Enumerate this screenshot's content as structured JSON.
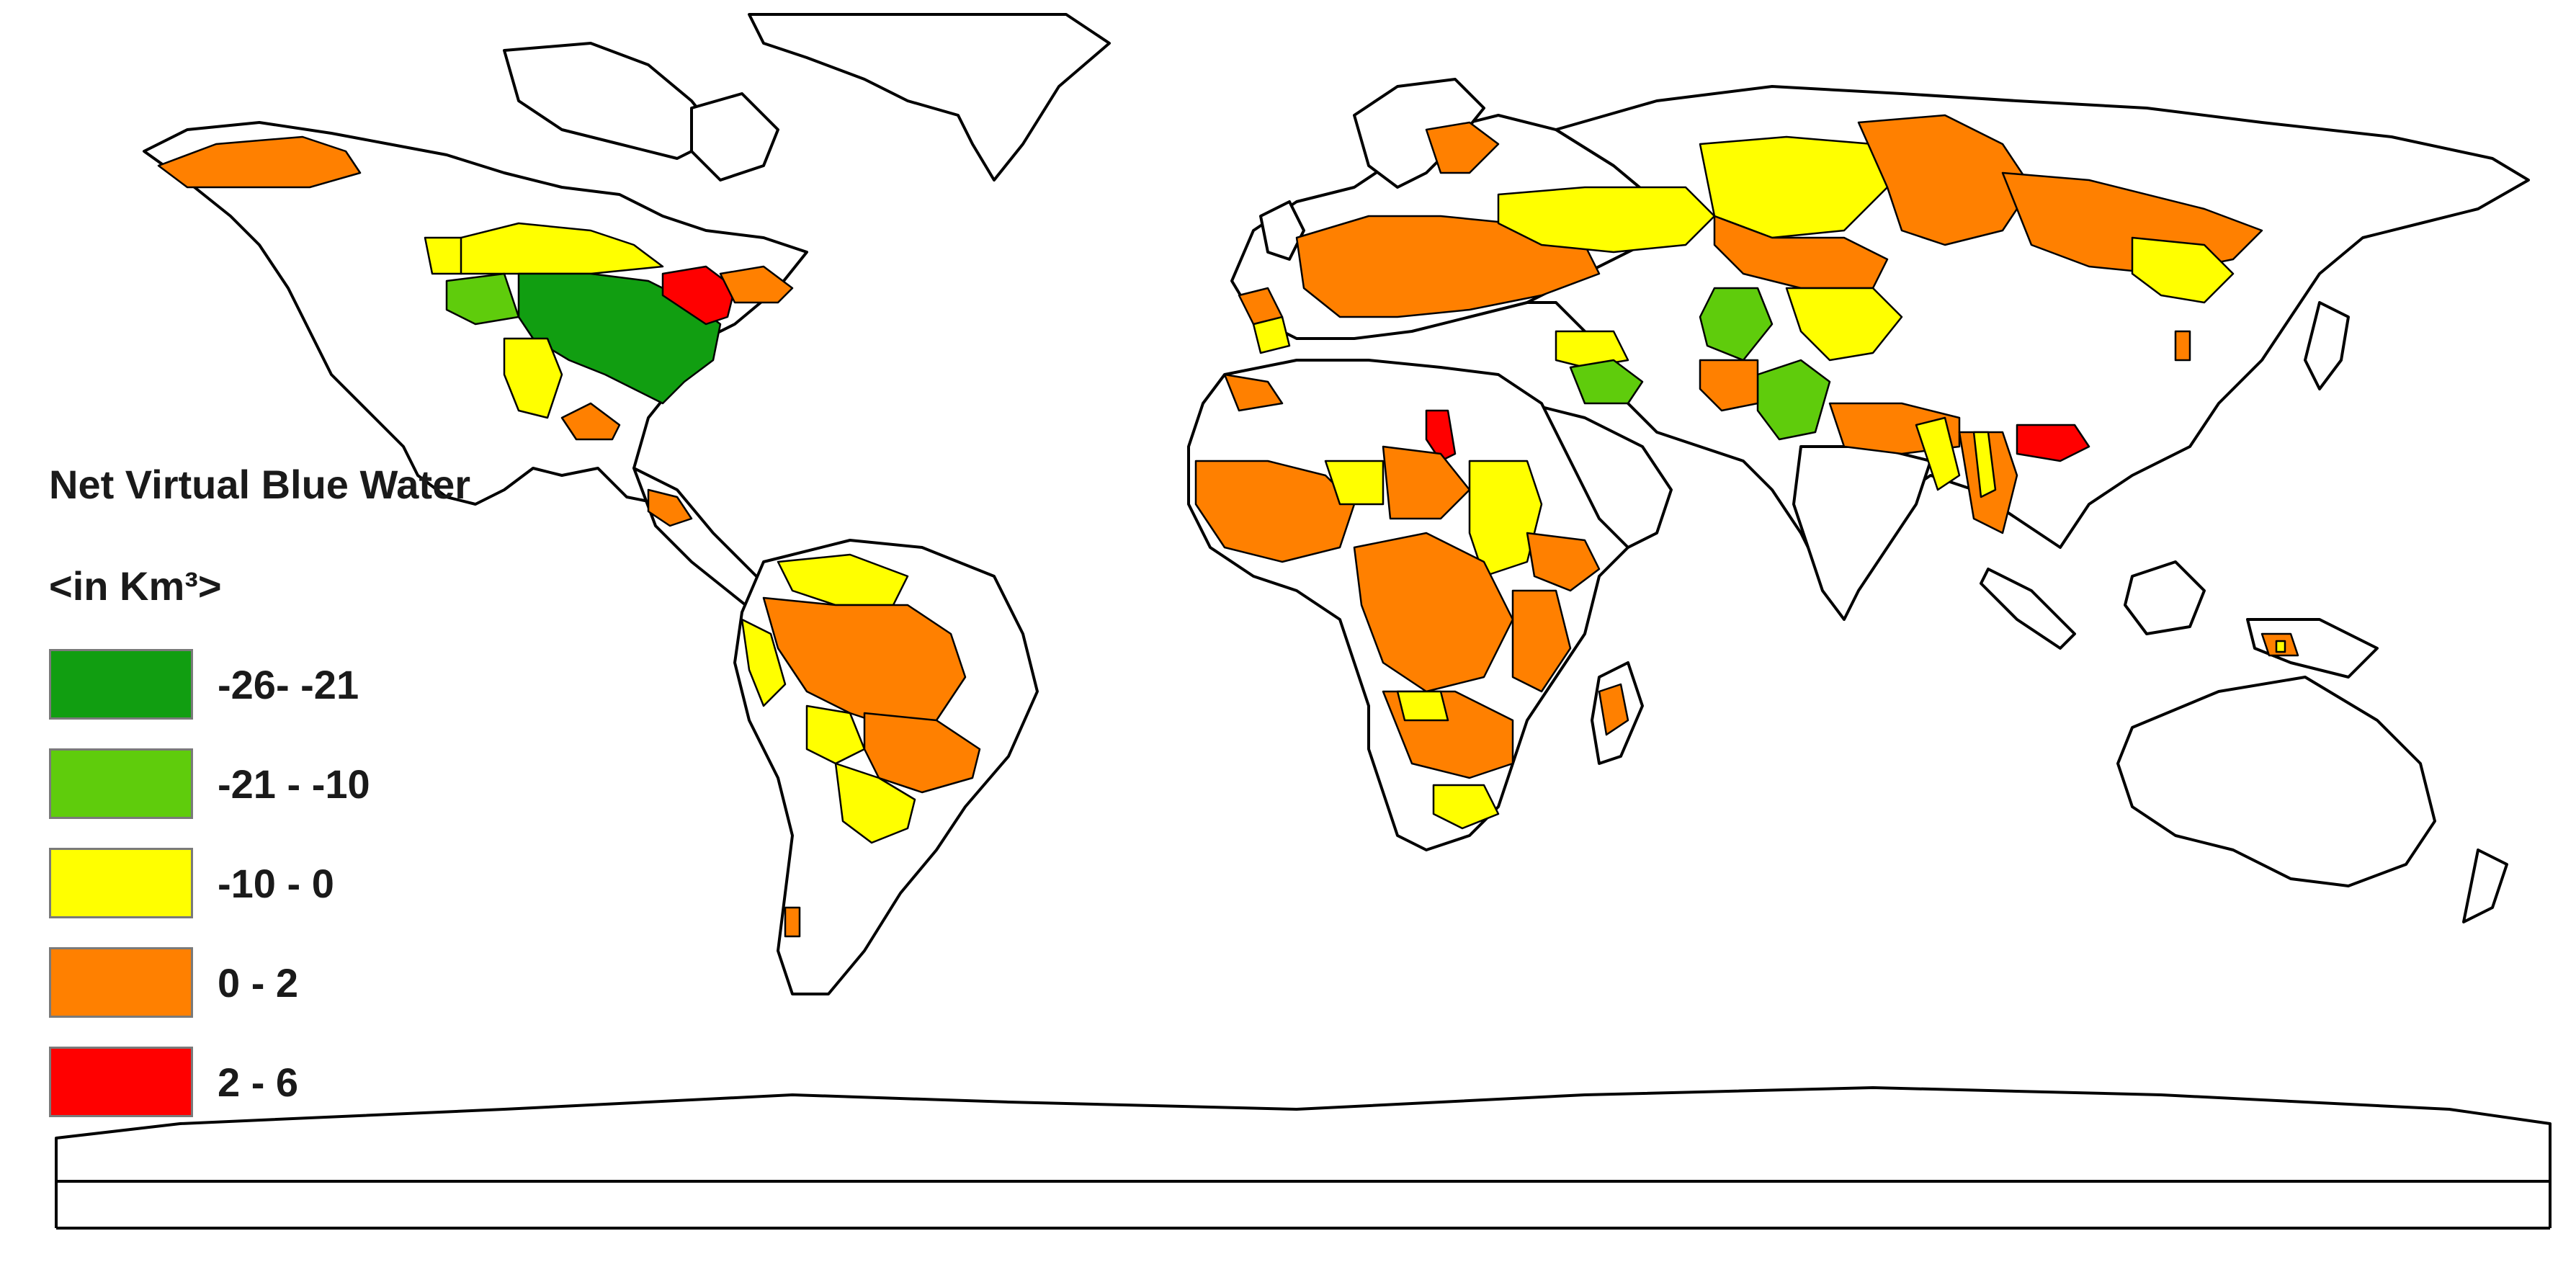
{
  "legend": {
    "title": "Net Virtual Blue Water",
    "unit": "<in Km³>",
    "items": [
      {
        "label": "-26- -21",
        "color": "#119E11"
      },
      {
        "label": "-21 - -10",
        "color": "#5FCC0C"
      },
      {
        "label": "-10 - 0",
        "color": "#FFFF00"
      },
      {
        "label": "0 - 2",
        "color": "#FF8000"
      },
      {
        "label": "2 - 6",
        "color": "#FF0000"
      }
    ]
  },
  "colors": {
    "land": "#FFFFFF",
    "coastline": "#000000",
    "ocean": "#FFFFFF"
  }
}
